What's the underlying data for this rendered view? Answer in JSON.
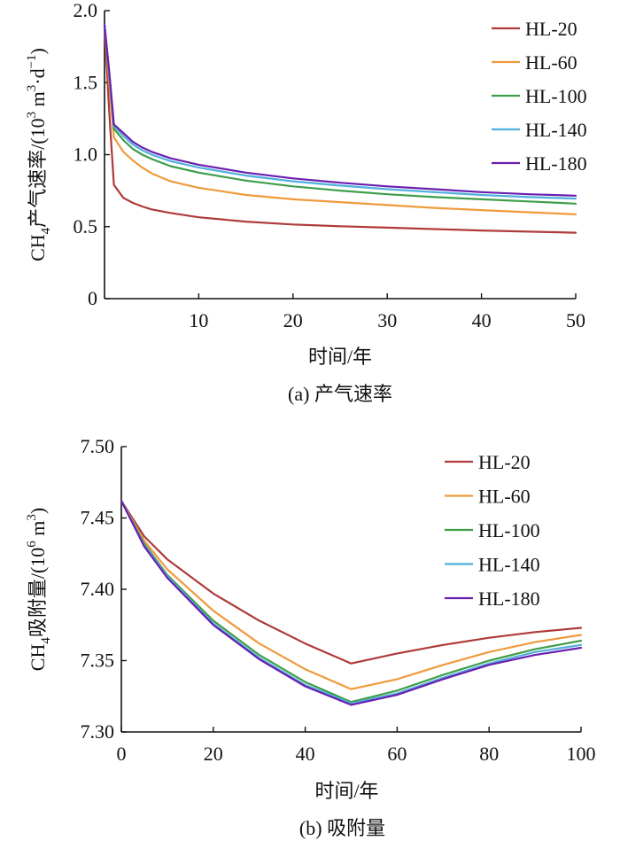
{
  "chart_data": [
    {
      "type": "line",
      "xlabel": "时间/年",
      "ylabel_main": "CH",
      "ylabel_sub": "4",
      "ylabel_rest": "产气速率/(10",
      "ylabel_sup1": "3",
      "ylabel_mid": " m",
      "ylabel_sup2": "3",
      "ylabel_end": "·d",
      "ylabel_sup3": "−1",
      "ylabel_close": ")",
      "caption": "(a) 产气速率",
      "xlim": [
        0,
        50
      ],
      "ylim": [
        0,
        2.0
      ],
      "x_ticks": [
        10,
        20,
        30,
        40,
        50
      ],
      "x_tick_labels": [
        "10",
        "20",
        "30",
        "40",
        "50"
      ],
      "y_ticks": [
        0,
        0.5,
        1.0,
        1.5,
        2.0
      ],
      "y_tick_labels": [
        "0",
        "0.5",
        "1.0",
        "1.5",
        "2.0"
      ],
      "legend_position": "top-right",
      "series": [
        {
          "name": "HL-20",
          "color": "#b03a3a",
          "x": [
            0,
            0.5,
            1,
            2,
            3,
            4,
            5,
            7,
            10,
            15,
            20,
            25,
            30,
            35,
            40,
            45,
            50
          ],
          "y": [
            1.9,
            1.3,
            0.79,
            0.7,
            0.665,
            0.64,
            0.62,
            0.595,
            0.565,
            0.535,
            0.515,
            0.503,
            0.493,
            0.483,
            0.473,
            0.465,
            0.458
          ]
        },
        {
          "name": "HL-60",
          "color": "#ef9a3c",
          "x": [
            0,
            0.5,
            1,
            2,
            3,
            4,
            5,
            7,
            10,
            15,
            20,
            25,
            30,
            35,
            40,
            45,
            50
          ],
          "y": [
            1.9,
            1.5,
            1.12,
            1.02,
            0.96,
            0.91,
            0.87,
            0.815,
            0.77,
            0.72,
            0.69,
            0.67,
            0.65,
            0.63,
            0.615,
            0.6,
            0.585
          ]
        },
        {
          "name": "HL-100",
          "color": "#3e9e4a",
          "x": [
            0,
            0.5,
            1,
            2,
            3,
            4,
            5,
            7,
            10,
            15,
            20,
            25,
            30,
            35,
            40,
            45,
            50
          ],
          "y": [
            1.9,
            1.55,
            1.18,
            1.1,
            1.04,
            1.0,
            0.97,
            0.92,
            0.875,
            0.82,
            0.78,
            0.75,
            0.725,
            0.705,
            0.69,
            0.675,
            0.66
          ]
        },
        {
          "name": "HL-140",
          "color": "#4fb0dc",
          "x": [
            0,
            0.5,
            1,
            2,
            3,
            4,
            5,
            7,
            10,
            15,
            20,
            25,
            30,
            35,
            40,
            45,
            50
          ],
          "y": [
            1.9,
            1.57,
            1.2,
            1.13,
            1.07,
            1.03,
            1.0,
            0.955,
            0.91,
            0.855,
            0.815,
            0.785,
            0.76,
            0.74,
            0.72,
            0.705,
            0.695
          ]
        },
        {
          "name": "HL-180",
          "color": "#6a1fb0",
          "x": [
            0,
            0.5,
            1,
            2,
            3,
            4,
            5,
            7,
            10,
            15,
            20,
            25,
            30,
            35,
            40,
            45,
            50
          ],
          "y": [
            1.9,
            1.58,
            1.21,
            1.15,
            1.09,
            1.05,
            1.02,
            0.975,
            0.93,
            0.875,
            0.835,
            0.805,
            0.78,
            0.76,
            0.74,
            0.725,
            0.715
          ]
        }
      ]
    },
    {
      "type": "line",
      "xlabel": "时间/年",
      "ylabel_main": "CH",
      "ylabel_sub": "4",
      "ylabel_rest": "吸附量/(10",
      "ylabel_sup1": "6",
      "ylabel_mid": " m",
      "ylabel_sup2": "3",
      "ylabel_close": ")",
      "caption": "(b) 吸附量",
      "xlim": [
        0,
        100
      ],
      "ylim": [
        7.3,
        7.5
      ],
      "x_ticks": [
        0,
        20,
        40,
        60,
        80,
        100
      ],
      "x_tick_labels": [
        "0",
        "20",
        "40",
        "60",
        "80",
        "100"
      ],
      "y_ticks": [
        7.3,
        7.35,
        7.4,
        7.45,
        7.5
      ],
      "y_tick_labels": [
        "7.30",
        "7.35",
        "7.40",
        "7.45",
        "7.50"
      ],
      "legend_position": "top-right",
      "series": [
        {
          "name": "HL-20",
          "color": "#b03a3a",
          "x": [
            0,
            5,
            10,
            20,
            30,
            40,
            50,
            60,
            70,
            80,
            90,
            100
          ],
          "y": [
            7.462,
            7.437,
            7.421,
            7.397,
            7.378,
            7.362,
            7.348,
            7.355,
            7.361,
            7.366,
            7.37,
            7.373
          ]
        },
        {
          "name": "HL-60",
          "color": "#ef9a3c",
          "x": [
            0,
            5,
            10,
            20,
            30,
            40,
            50,
            60,
            70,
            80,
            90,
            100
          ],
          "y": [
            7.462,
            7.434,
            7.414,
            7.385,
            7.362,
            7.344,
            7.33,
            7.337,
            7.347,
            7.356,
            7.363,
            7.368
          ]
        },
        {
          "name": "HL-100",
          "color": "#3e9e4a",
          "x": [
            0,
            5,
            10,
            20,
            30,
            40,
            50,
            60,
            70,
            80,
            90,
            100
          ],
          "y": [
            7.462,
            7.432,
            7.41,
            7.378,
            7.354,
            7.335,
            7.321,
            7.329,
            7.34,
            7.35,
            7.358,
            7.364
          ]
        },
        {
          "name": "HL-140",
          "color": "#4fb0dc",
          "x": [
            0,
            5,
            10,
            20,
            30,
            40,
            50,
            60,
            70,
            80,
            90,
            100
          ],
          "y": [
            7.462,
            7.431,
            7.409,
            7.376,
            7.352,
            7.333,
            7.32,
            7.327,
            7.338,
            7.348,
            7.356,
            7.361
          ]
        },
        {
          "name": "HL-180",
          "color": "#6a1fb0",
          "x": [
            0,
            5,
            10,
            20,
            30,
            40,
            50,
            60,
            70,
            80,
            90,
            100
          ],
          "y": [
            7.462,
            7.43,
            7.408,
            7.375,
            7.351,
            7.332,
            7.319,
            7.326,
            7.337,
            7.347,
            7.354,
            7.359
          ]
        }
      ]
    }
  ]
}
